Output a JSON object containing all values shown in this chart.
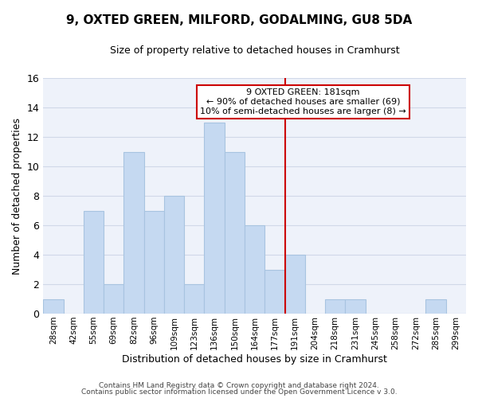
{
  "title": "9, OXTED GREEN, MILFORD, GODALMING, GU8 5DA",
  "subtitle": "Size of property relative to detached houses in Cramhurst",
  "xlabel": "Distribution of detached houses by size in Cramhurst",
  "ylabel": "Number of detached properties",
  "footer_line1": "Contains HM Land Registry data © Crown copyright and database right 2024.",
  "footer_line2": "Contains public sector information licensed under the Open Government Licence v 3.0.",
  "bins": [
    "28sqm",
    "42sqm",
    "55sqm",
    "69sqm",
    "82sqm",
    "96sqm",
    "109sqm",
    "123sqm",
    "136sqm",
    "150sqm",
    "164sqm",
    "177sqm",
    "191sqm",
    "204sqm",
    "218sqm",
    "231sqm",
    "245sqm",
    "258sqm",
    "272sqm",
    "285sqm",
    "299sqm"
  ],
  "values": [
    1,
    0,
    7,
    2,
    11,
    7,
    8,
    2,
    13,
    11,
    6,
    3,
    4,
    0,
    1,
    1,
    0,
    0,
    0,
    1,
    0
  ],
  "bar_color": "#c5d9f1",
  "bar_edge_color": "#a8c4e0",
  "grid_color": "#d0d8e8",
  "vline_x": 11.5,
  "vline_color": "#cc0000",
  "annotation_title": "9 OXTED GREEN: 181sqm",
  "annotation_line1": "← 90% of detached houses are smaller (69)",
  "annotation_line2": "10% of semi-detached houses are larger (8) →",
  "annotation_box_color": "#ffffff",
  "annotation_box_edge": "#cc0000",
  "ylim": [
    0,
    16
  ],
  "yticks": [
    0,
    2,
    4,
    6,
    8,
    10,
    12,
    14,
    16
  ],
  "bg_color": "#ffffff",
  "plot_bg_color": "#eef2fa"
}
